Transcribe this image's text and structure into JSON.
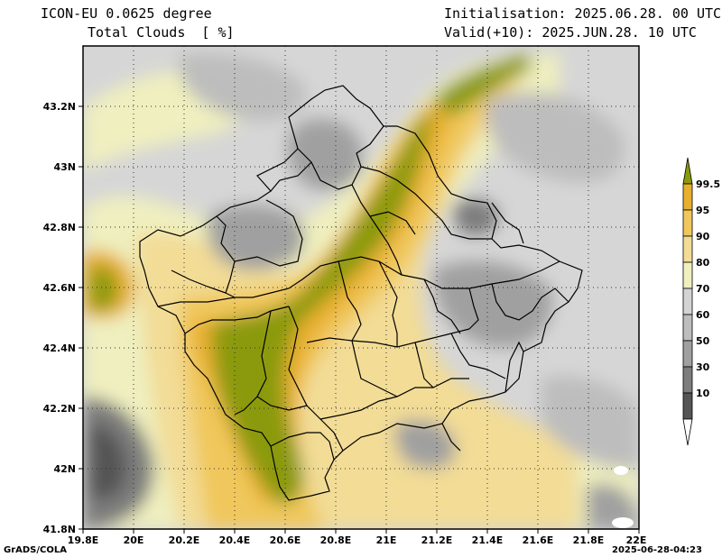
{
  "header": {
    "model": "ICON-EU 0.0625 degree",
    "variable": "Total Clouds  [ %]",
    "init": "Initialisation: 2025.06.28. 00 UTC",
    "valid": "Valid(+10): 2025.JUN.28. 10 UTC"
  },
  "axes": {
    "y_ticks": [
      "43.2N",
      "43N",
      "42.8N",
      "42.6N",
      "42.4N",
      "42.2N",
      "42N",
      "41.8N"
    ],
    "x_ticks": [
      "19.8E",
      "20E",
      "20.2E",
      "20.4E",
      "20.6E",
      "20.8E",
      "21E",
      "21.2E",
      "21.4E",
      "21.6E",
      "21.8E",
      "22E"
    ]
  },
  "colorbar": {
    "levels": [
      "99.5",
      "95",
      "90",
      "80",
      "70",
      "60",
      "50",
      "30",
      "10"
    ],
    "colors": [
      "#ffffff",
      "#555555",
      "#7d7d7d",
      "#a0a0a0",
      "#bdbdbd",
      "#d4d4d4",
      "#efefbf",
      "#f2dc96",
      "#f0c75c",
      "#e8af2e",
      "#8b9a07"
    ]
  },
  "footer": {
    "left": "GrADS/COLA",
    "right": "2025-06-28-04:23"
  }
}
